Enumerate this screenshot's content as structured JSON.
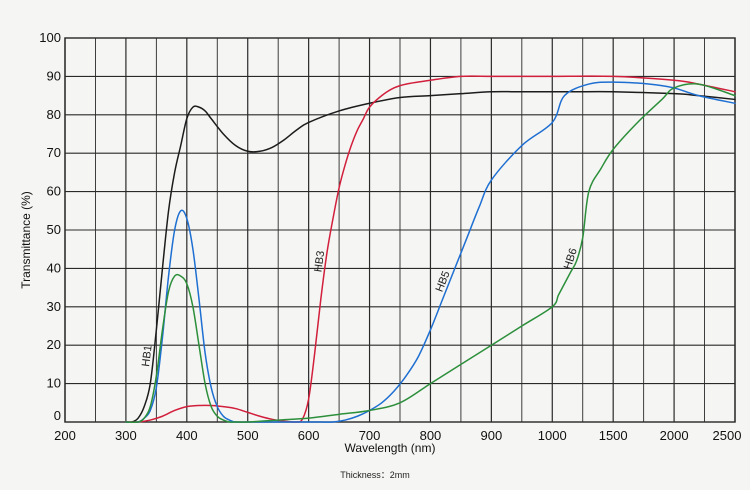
{
  "chart_data": {
    "type": "line",
    "title": "",
    "xlabel": "Wavelength (nm)",
    "ylabel": "Transmittance (%)",
    "ylim": [
      0,
      100
    ],
    "x_scale": "segmented",
    "x_ticks": [
      "200",
      "300",
      "400",
      "500",
      "600",
      "700",
      "800",
      "900",
      "1000",
      "1500",
      "2000",
      "2500"
    ],
    "y_ticks": [
      "0",
      "10",
      "20",
      "30",
      "40",
      "50",
      "60",
      "70",
      "80",
      "90",
      "100"
    ],
    "grid": true,
    "legend": "none",
    "series": [
      {
        "name": "HB1",
        "color": "#1c1c1c",
        "label_at": 345,
        "x": [
          300,
          310,
          320,
          330,
          340,
          350,
          360,
          370,
          380,
          390,
          400,
          410,
          420,
          430,
          440,
          460,
          480,
          500,
          520,
          540,
          560,
          580,
          600,
          650,
          700,
          750,
          800,
          850,
          900,
          950,
          1000,
          1200,
          1500,
          2000,
          2200,
          2500
        ],
        "y": [
          0,
          0,
          1,
          4,
          10,
          24,
          40,
          55,
          65,
          72,
          79,
          82,
          82,
          81,
          79,
          75,
          72,
          70.5,
          70.5,
          71.5,
          73.5,
          76,
          78,
          81,
          83,
          84.5,
          85,
          85.5,
          86,
          86,
          86,
          86,
          86,
          85.5,
          85,
          84
        ]
      },
      {
        "name": "HB3",
        "color": "#d21f3c",
        "label_at": 628,
        "x": [
          300,
          320,
          340,
          360,
          380,
          400,
          420,
          440,
          460,
          480,
          500,
          520,
          540,
          560,
          580,
          590,
          600,
          610,
          620,
          630,
          640,
          650,
          660,
          670,
          680,
          690,
          700,
          720,
          740,
          760,
          800,
          850,
          900,
          950,
          1000,
          1500,
          2000,
          2200,
          2500
        ],
        "y": [
          0,
          0,
          0.5,
          1.5,
          3,
          4,
          4.3,
          4.3,
          4,
          3.5,
          2.5,
          1.5,
          0.7,
          0.2,
          0,
          0.8,
          6,
          18,
          32,
          44,
          53,
          61,
          67,
          72,
          76,
          79,
          82,
          85,
          87,
          88,
          89,
          90,
          90,
          90,
          90,
          90,
          89,
          88,
          86
        ]
      },
      {
        "name": "HB5",
        "color": "#1e6fd2",
        "label_at": 830,
        "x": [
          300,
          320,
          330,
          340,
          350,
          360,
          370,
          380,
          390,
          400,
          410,
          420,
          430,
          440,
          450,
          460,
          470,
          480,
          500,
          550,
          600,
          620,
          640,
          660,
          680,
          700,
          720,
          740,
          760,
          780,
          800,
          820,
          840,
          860,
          880,
          900,
          950,
          1000,
          1100,
          1300,
          1500,
          1800,
          2000,
          2200,
          2500
        ],
        "y": [
          0,
          0,
          1,
          3,
          9,
          22,
          38,
          50,
          55,
          53,
          45,
          32,
          18,
          9,
          4,
          1.5,
          0.5,
          0,
          0,
          0,
          0,
          0,
          0,
          0.5,
          1.5,
          3,
          5,
          8,
          12,
          17,
          24,
          32,
          40,
          48,
          56,
          63,
          72,
          78,
          85,
          88,
          88.5,
          88,
          87,
          85,
          83
        ]
      },
      {
        "name": "HB6",
        "color": "#2c8f3b",
        "label_at": 1200,
        "x": [
          300,
          320,
          330,
          340,
          350,
          360,
          370,
          380,
          390,
          400,
          410,
          420,
          430,
          440,
          450,
          460,
          470,
          480,
          500,
          550,
          600,
          650,
          700,
          750,
          800,
          850,
          900,
          950,
          1000,
          1050,
          1100,
          1150,
          1200,
          1250,
          1300,
          1400,
          1500,
          1700,
          1900,
          2000,
          2200,
          2500
        ],
        "y": [
          0,
          0,
          1,
          4,
          12,
          24,
          34,
          38,
          38,
          36,
          30,
          20,
          10,
          4,
          1.5,
          0.5,
          0,
          0,
          0,
          0.5,
          1,
          2,
          3,
          5,
          10,
          15,
          20,
          25,
          30,
          33,
          36,
          39,
          42,
          48,
          60,
          66,
          71,
          78,
          84,
          87,
          88,
          85
        ]
      }
    ]
  },
  "caption": "Thickness：2mm"
}
